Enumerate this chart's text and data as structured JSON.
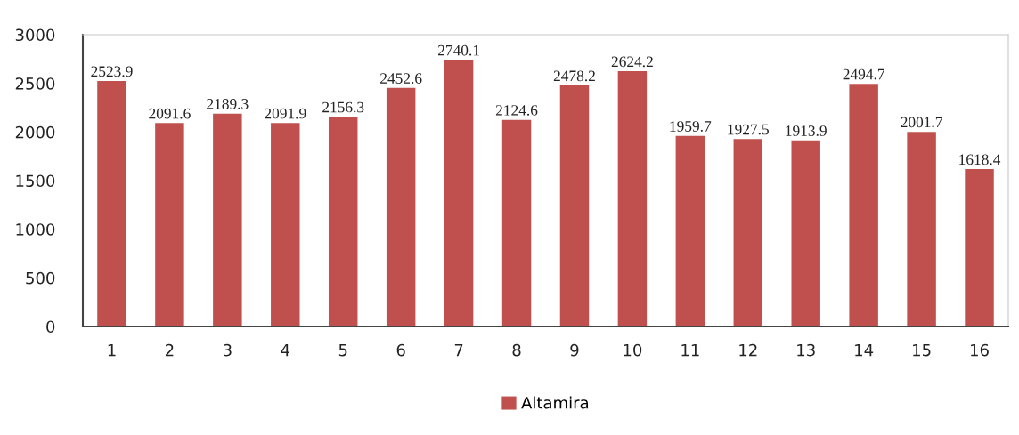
{
  "chart_data": {
    "type": "bar",
    "categories": [
      "1",
      "2",
      "3",
      "4",
      "5",
      "6",
      "7",
      "8",
      "9",
      "10",
      "11",
      "12",
      "13",
      "14",
      "15",
      "16"
    ],
    "series": [
      {
        "name": "Altamira",
        "color": "#c0504d",
        "values": [
          2523.9,
          2091.6,
          2189.3,
          2091.9,
          2156.3,
          2452.6,
          2740.1,
          2124.6,
          2478.2,
          2624.2,
          1959.7,
          1927.5,
          1913.9,
          2494.7,
          2001.7,
          1618.4
        ]
      }
    ],
    "ylim": [
      0,
      3000
    ],
    "yticks": [
      0,
      500,
      1000,
      1500,
      2000,
      2500,
      3000
    ],
    "data_labels": true,
    "grid": false,
    "legend": "bottom"
  }
}
